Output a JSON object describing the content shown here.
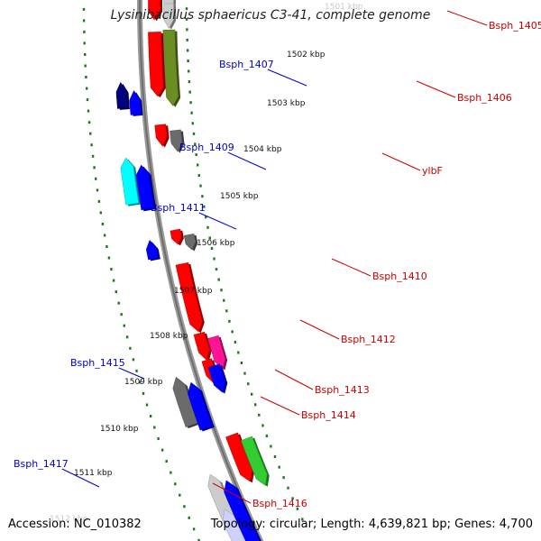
{
  "header": {
    "title": "Lysinibacillus sphaericus C3-41, complete genome"
  },
  "footer": {
    "accession_label": "Accession:",
    "accession": "NC_010382",
    "topology_label": "Topology:",
    "topology": "circular",
    "length_label": "Length:",
    "length": "4,639,821 bp",
    "genes_label": "Genes:",
    "genes": "4,700"
  },
  "ticks": [
    {
      "label": "1501 kbp",
      "faded": true
    },
    {
      "label": "1502 kbp"
    },
    {
      "label": "1503 kbp"
    },
    {
      "label": "1504 kbp"
    },
    {
      "label": "1505 kbp"
    },
    {
      "label": "1506 kbp"
    },
    {
      "label": "1507 kbp"
    },
    {
      "label": "1508 kbp"
    },
    {
      "label": "1509 kbp"
    },
    {
      "label": "1510 kbp"
    },
    {
      "label": "1511 kbp"
    },
    {
      "label": "1512 kbp",
      "faded": true
    }
  ],
  "colors": {
    "forward_label": "#0000cc",
    "reverse_label": "#cc0000",
    "red": "#ff0000",
    "blue": "#0000ff",
    "navy": "#000080",
    "cyan": "#00ffff",
    "gray": "#6b6b6b",
    "olive": "#6b8e23",
    "green": "#33cc33",
    "magenta": "#ff1493",
    "lightgray": "#cccccc",
    "lavender": "#d0d0ff",
    "backbone": "#8a8a8a",
    "dots": "#1a7a1a"
  },
  "genes": [
    {
      "name": "",
      "strand": "reverse",
      "color": "red"
    },
    {
      "name": "",
      "strand": "reverse",
      "color": "lightgray"
    },
    {
      "name": "Bsph_1405",
      "strand": "reverse",
      "color": "lightgray"
    },
    {
      "name": "Bsph_1406",
      "strand": "reverse",
      "color": "olive"
    },
    {
      "name": "",
      "strand": "reverse",
      "color": "red"
    },
    {
      "name": "Bsph_1407",
      "strand": "forward",
      "color": "navy"
    },
    {
      "name": "",
      "strand": "forward",
      "color": "blue"
    },
    {
      "name": "",
      "strand": "reverse",
      "color": "red"
    },
    {
      "name": "ylbF",
      "strand": "reverse",
      "color": "gray"
    },
    {
      "name": "Bsph_1409",
      "strand": "forward",
      "color": "cyan"
    },
    {
      "name": "",
      "strand": "forward",
      "color": "blue"
    },
    {
      "name": "Bsph_1411",
      "strand": "forward",
      "color": "blue"
    },
    {
      "name": "",
      "strand": "reverse",
      "color": "red"
    },
    {
      "name": "Bsph_1410",
      "strand": "reverse",
      "color": "gray"
    },
    {
      "name": "Bsph_1412",
      "strand": "reverse",
      "color": "red"
    },
    {
      "name": "",
      "strand": "reverse",
      "color": "red"
    },
    {
      "name": "",
      "strand": "reverse",
      "color": "red"
    },
    {
      "name": "Bsph_1413",
      "strand": "reverse",
      "color": "magenta"
    },
    {
      "name": "Bsph_1414",
      "strand": "reverse",
      "color": "blue"
    },
    {
      "name": "Bsph_1415",
      "strand": "forward",
      "color": "gray"
    },
    {
      "name": "",
      "strand": "forward",
      "color": "blue"
    },
    {
      "name": "",
      "strand": "reverse",
      "color": "red"
    },
    {
      "name": "Bsph_1416",
      "strand": "reverse",
      "color": "green"
    },
    {
      "name": "Bsph_1417",
      "strand": "forward",
      "color": "lightgray"
    },
    {
      "name": "",
      "strand": "forward",
      "color": "lavender"
    },
    {
      "name": "",
      "strand": "forward",
      "color": "blue"
    }
  ]
}
